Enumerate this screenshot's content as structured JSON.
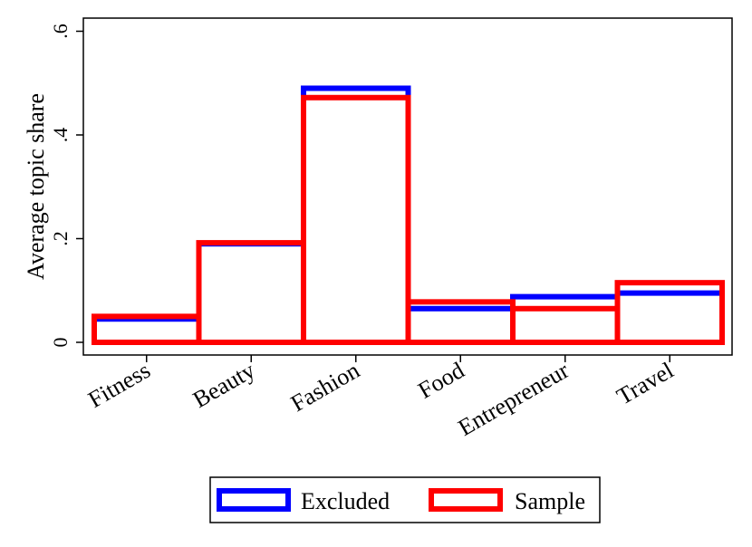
{
  "chart_data": {
    "type": "bar",
    "categories": [
      "Fitness",
      "Beauty",
      "Fashion",
      "Food",
      "Entrepreneur",
      "Travel"
    ],
    "series": [
      {
        "name": "Excluded",
        "color": "#0000ff",
        "values": [
          0.045,
          0.19,
          0.49,
          0.065,
          0.088,
          0.095
        ]
      },
      {
        "name": "Sample",
        "color": "#ff0000",
        "values": [
          0.05,
          0.192,
          0.472,
          0.078,
          0.065,
          0.115
        ]
      }
    ],
    "title": "",
    "xlabel": "",
    "ylabel": "Average topic share",
    "ylim": [
      0,
      0.6
    ],
    "yticks": [
      0,
      0.2,
      0.4,
      0.6
    ],
    "ytick_labels": [
      "0",
      ".2",
      ".4",
      ".6"
    ],
    "grid": false,
    "legend_placement": "bottom"
  }
}
